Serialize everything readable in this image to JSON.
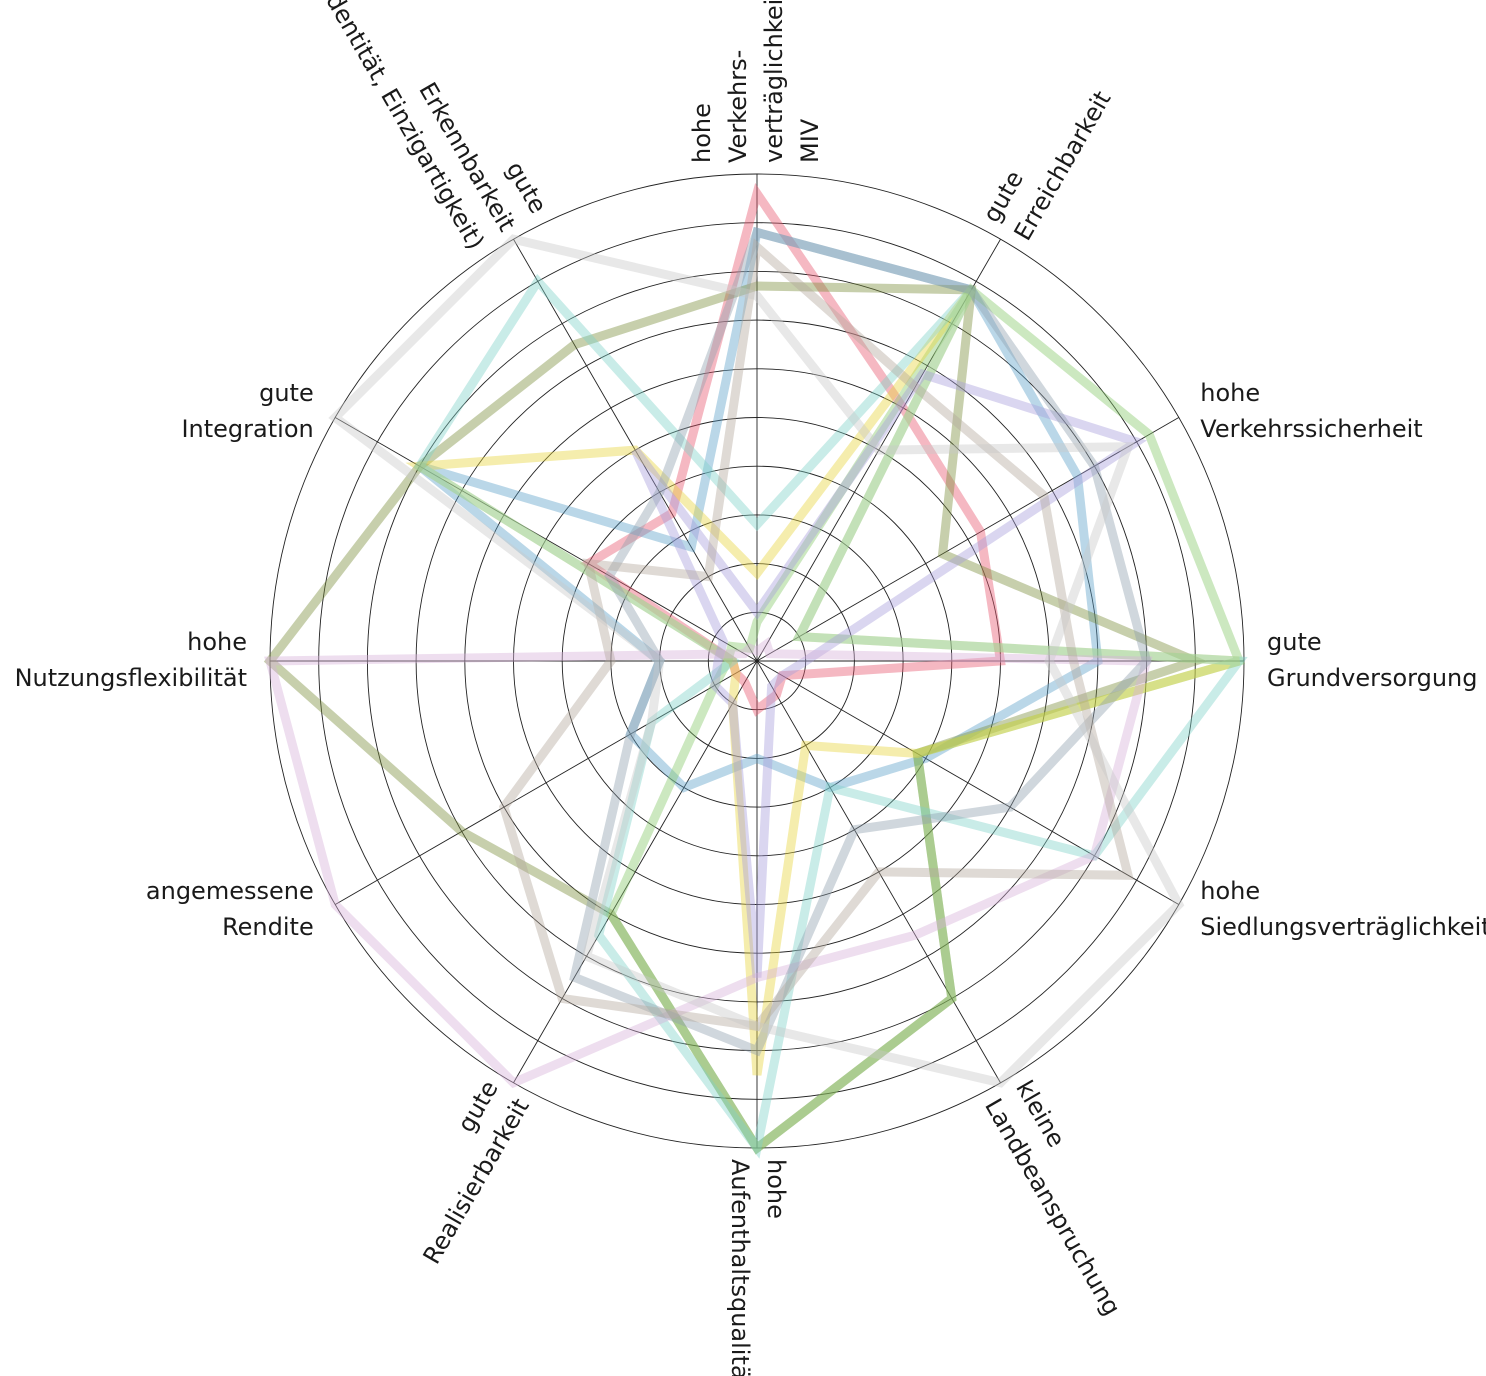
{
  "chart_data": {
    "type": "radar",
    "rmax": 10,
    "rings": 10,
    "axes": [
      {
        "lines": [
          "hohe",
          "Verkehrs-",
          "verträglichkeit",
          "MIV"
        ]
      },
      {
        "lines": [
          "gute",
          "Erreichbarkeit"
        ]
      },
      {
        "lines": [
          "hohe",
          "Verkehrssicherheit"
        ]
      },
      {
        "lines": [
          "gute",
          "Grundversorgung"
        ]
      },
      {
        "lines": [
          "hohe",
          "Siedlungsverträglichkeit"
        ]
      },
      {
        "lines": [
          "kleine",
          "Landbeanspruchung"
        ]
      },
      {
        "lines": [
          "hohe",
          "Aufenthaltsqualität"
        ]
      },
      {
        "lines": [
          "gute",
          "Realisierbarkeit"
        ]
      },
      {
        "lines": [
          "angemessene",
          "Rendite"
        ]
      },
      {
        "lines": [
          "hohe",
          "Nutzungsflexibilität"
        ]
      },
      {
        "lines": [
          "gute",
          "Integration"
        ]
      },
      {
        "lines": [
          "gute",
          "Erkennbarkeit",
          "(Identität, Einzigartigkeit)"
        ]
      }
    ],
    "series": [
      {
        "color": "#e8556e",
        "values": [
          9.6,
          6.0,
          5.3,
          5.0,
          0.6,
          0.8,
          1.0,
          0.5,
          0.5,
          0.5,
          4.0,
          3.5
        ]
      },
      {
        "color": "#5a9fc8",
        "values": [
          8.8,
          8.8,
          7.6,
          7.0,
          4.0,
          3.0,
          2.0,
          3.0,
          3.0,
          2.0,
          8.0,
          2.7
        ]
      },
      {
        "color": "#7a8c3a",
        "values": [
          7.7,
          8.8,
          4.4,
          9.0,
          3.8,
          8.0,
          10.0,
          6.0,
          7.0,
          10.0,
          8.0,
          7.5
        ]
      },
      {
        "color": "#85c96a",
        "values": [
          0.8,
          8.8,
          9.3,
          9.9,
          3.8,
          8.0,
          10.0,
          6.0,
          1.0,
          0.6,
          0.6,
          0.3
        ]
      },
      {
        "color": "#e6d43c",
        "values": [
          1.8,
          8.8,
          1.0,
          9.9,
          3.8,
          2.0,
          8.5,
          1.0,
          0.5,
          0.5,
          8.0,
          5.0
        ]
      },
      {
        "color": "#7fd1c8",
        "values": [
          2.8,
          8.8,
          1.0,
          9.9,
          8.0,
          3.0,
          10.0,
          6.5,
          2.5,
          0.5,
          8.0,
          9.0
        ]
      },
      {
        "color": "#a89ddc",
        "values": [
          1.0,
          6.8,
          9.0,
          1.0,
          0.6,
          0.6,
          6.5,
          1.0,
          1.0,
          0.8,
          0.8,
          5.0
        ]
      },
      {
        "color": "#d7b0d8",
        "values": [
          0.2,
          0.4,
          0.3,
          8.0,
          8.0,
          6.5,
          6.5,
          10.0,
          10.0,
          10.0,
          0.3,
          0.3
        ]
      },
      {
        "color": "#8fa0ad",
        "values": [
          8.8,
          8.8,
          8.0,
          8.0,
          6.0,
          4.0,
          8.0,
          7.5,
          3.0,
          2.0,
          3.5,
          4.0
        ]
      },
      {
        "color": "#b3a69a",
        "values": [
          8.5,
          6.5,
          6.8,
          6.5,
          8.8,
          5.0,
          7.5,
          8.0,
          6.0,
          3.0,
          4.0,
          2.0
        ]
      },
      {
        "color": "#c8c8c8",
        "values": [
          7.5,
          5.0,
          8.8,
          6.0,
          10.0,
          10.0,
          7.5,
          7.0,
          2.5,
          2.0,
          10.0,
          10.0
        ]
      }
    ]
  }
}
